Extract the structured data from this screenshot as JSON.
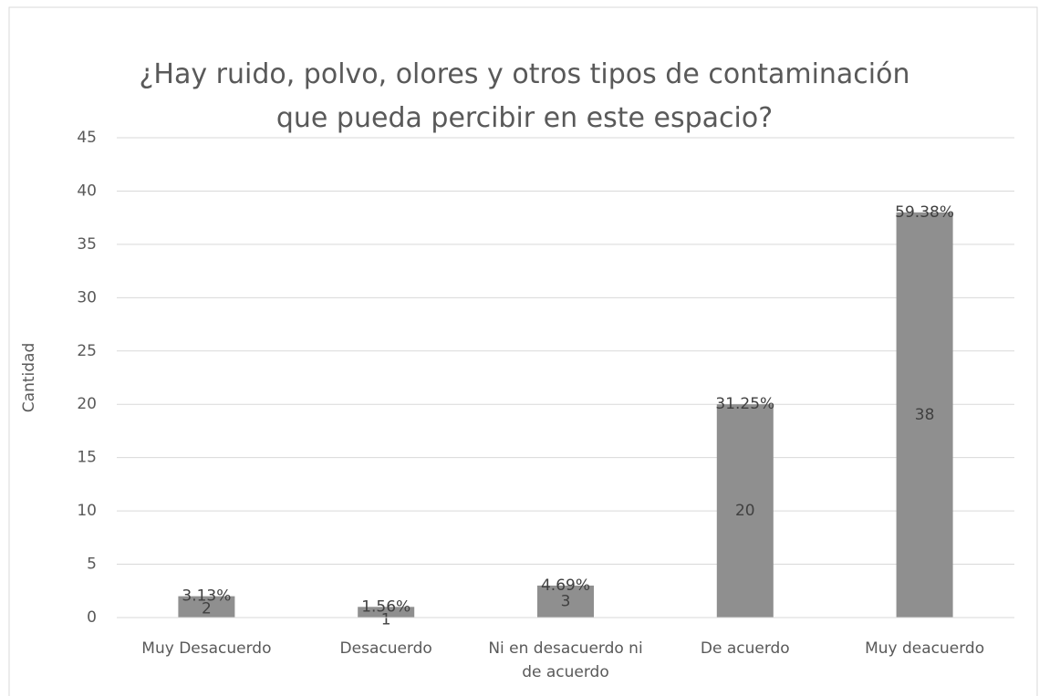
{
  "chart_data": {
    "type": "bar",
    "title": "¿Hay ruido, polvo, olores y otros tipos de contaminación que pueda percibir en este espacio?",
    "y_label": "Cantidad",
    "categories": [
      "Muy Desacuerdo",
      "Desacuerdo",
      "Ni en desacuerdo ni de acuerdo",
      "De acuerdo",
      "Muy deacuerdo"
    ],
    "values": [
      2,
      1,
      3,
      20,
      38
    ],
    "percentages": [
      3.13,
      1.56,
      4.69,
      31.25,
      59.38
    ],
    "percentage_labels": [
      "3.13%",
      "1.56%",
      "4.69%",
      "31.25%",
      "59.38%"
    ],
    "color": "#8f8f8f",
    "ylim": [
      0,
      45
    ],
    "yticks": [
      0,
      5,
      10,
      15,
      20,
      25,
      30,
      35,
      40,
      45
    ],
    "grid": true
  }
}
